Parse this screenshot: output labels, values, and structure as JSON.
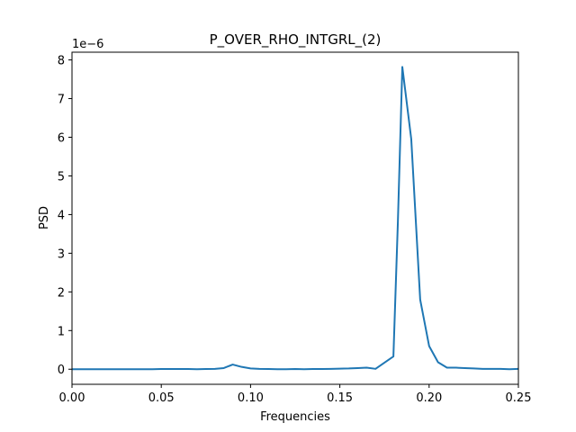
{
  "chart_data": {
    "type": "line",
    "title": "P_OVER_RHO_INTGRL_(2)",
    "xlabel": "Frequencies",
    "ylabel": "PSD",
    "y_scale_label": "1e−6",
    "xlim": [
      0,
      0.25
    ],
    "ylim": [
      -0.39,
      8.2
    ],
    "grid": false,
    "x_ticks": [
      0.0,
      0.05,
      0.1,
      0.15,
      0.2,
      0.25
    ],
    "x_tick_labels": [
      "0.00",
      "0.05",
      "0.10",
      "0.15",
      "0.20",
      "0.25"
    ],
    "y_ticks": [
      0,
      1,
      2,
      3,
      4,
      5,
      6,
      7,
      8
    ],
    "y_tick_labels": [
      "0",
      "1",
      "2",
      "3",
      "4",
      "5",
      "6",
      "7",
      "8"
    ],
    "series": [
      {
        "color": "#1f77b4",
        "x": [
          0.0,
          0.005,
          0.01,
          0.015,
          0.02,
          0.025,
          0.03,
          0.035,
          0.04,
          0.045,
          0.05,
          0.055,
          0.06,
          0.065,
          0.07,
          0.075,
          0.08,
          0.085,
          0.09,
          0.095,
          0.1,
          0.105,
          0.11,
          0.115,
          0.12,
          0.125,
          0.13,
          0.135,
          0.14,
          0.145,
          0.15,
          0.155,
          0.16,
          0.165,
          0.17,
          0.175,
          0.18,
          0.1825,
          0.185,
          0.19,
          0.195,
          0.2,
          0.205,
          0.21,
          0.215,
          0.22,
          0.225,
          0.23,
          0.235,
          0.24,
          0.245,
          0.25
        ],
        "y": [
          0.0,
          0.0,
          0.0,
          0.0,
          0.0,
          0.0,
          0.0,
          0.0,
          0.0,
          0.0,
          0.005,
          0.005,
          0.005,
          0.005,
          0.0,
          0.005,
          0.01,
          0.03,
          0.12,
          0.06,
          0.02,
          0.01,
          0.005,
          0.0,
          0.0,
          0.005,
          0.0,
          0.005,
          0.005,
          0.01,
          0.015,
          0.02,
          0.03,
          0.04,
          0.01,
          0.17,
          0.33,
          3.8,
          7.82,
          5.95,
          1.8,
          0.6,
          0.18,
          0.04,
          0.04,
          0.03,
          0.02,
          0.01,
          0.01,
          0.01,
          0.0,
          0.01
        ]
      }
    ]
  }
}
